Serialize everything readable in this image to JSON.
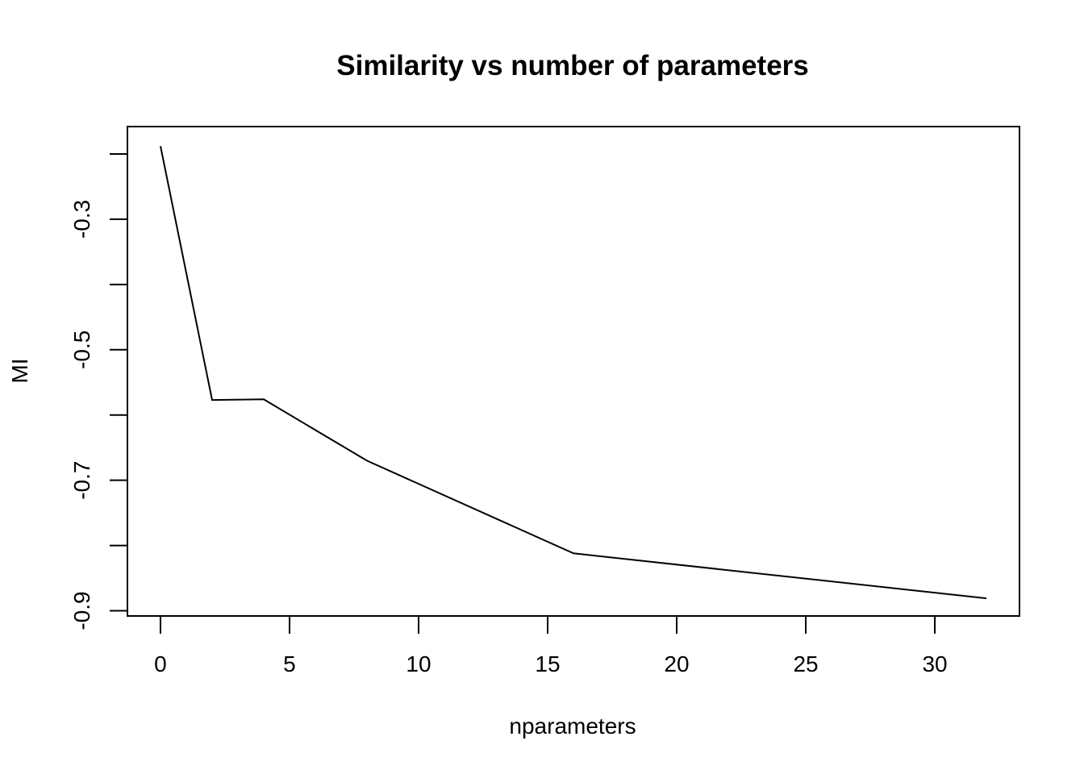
{
  "chart_data": {
    "type": "line",
    "title": "Similarity vs number of parameters",
    "xlabel": "nparameters",
    "ylabel": "MI",
    "xlim": [
      -1.28,
      33.28
    ],
    "ylim": [
      -0.908,
      -0.158
    ],
    "x_ticks": [
      0,
      5,
      10,
      15,
      20,
      25,
      30
    ],
    "y_ticks": [
      -0.2,
      -0.3,
      -0.4,
      -0.5,
      -0.6,
      -0.7,
      -0.8,
      -0.9
    ],
    "y_tick_labels": [
      "",
      "-0.3",
      "",
      "-0.5",
      "",
      "-0.7",
      "",
      "-0.9"
    ],
    "x": [
      0,
      2,
      4,
      8,
      16,
      32
    ],
    "values": [
      -0.188,
      -0.577,
      -0.576,
      -0.67,
      -0.812,
      -0.881
    ],
    "line_color": "#000000",
    "grid": false,
    "legend": "none"
  }
}
